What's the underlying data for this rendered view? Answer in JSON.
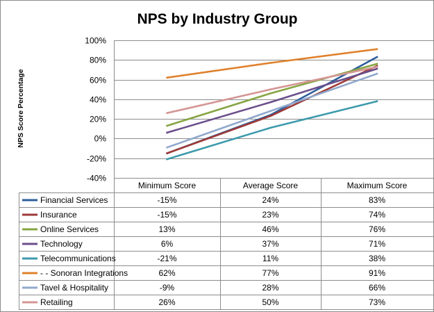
{
  "chart_data": {
    "type": "line",
    "title": "NPS  by Industry Group",
    "ylabel": "NPS Score Percentage",
    "xlabel": "",
    "categories": [
      "Minimum Score",
      "Average Score",
      "Maximum Score"
    ],
    "ylim": [
      -40,
      100
    ],
    "y_ticks": [
      -40,
      -20,
      0,
      20,
      40,
      60,
      80,
      100
    ],
    "y_tick_labels": [
      "-40%",
      "-20%",
      "0%",
      "20%",
      "40%",
      "60%",
      "80%",
      "100%"
    ],
    "grid": "horizontal",
    "legend": "data-table",
    "series": [
      {
        "name": "Financial Services",
        "values": [
          -15,
          24,
          83
        ],
        "labels": [
          "-15%",
          "24%",
          "83%"
        ],
        "color": "#2e5f9a"
      },
      {
        "name": "Insurance",
        "values": [
          -15,
          23,
          74
        ],
        "labels": [
          "-15%",
          "23%",
          "74%"
        ],
        "color": "#9e3a38"
      },
      {
        "name": "Online Services",
        "values": [
          13,
          46,
          76
        ],
        "labels": [
          "13%",
          "46%",
          "76%"
        ],
        "color": "#86a542"
      },
      {
        "name": "Technology",
        "values": [
          6,
          37,
          71
        ],
        "labels": [
          "6%",
          "37%",
          "71%"
        ],
        "color": "#6b4f8c"
      },
      {
        "name": "Telecommunications",
        "values": [
          -21,
          11,
          38
        ],
        "labels": [
          "-21%",
          "11%",
          "38%"
        ],
        "color": "#3c9aac"
      },
      {
        "name": "- - Sonoran Integrations",
        "values": [
          62,
          77,
          91
        ],
        "labels": [
          "62%",
          "77%",
          "91%"
        ],
        "color": "#e0812c"
      },
      {
        "name": "Tavel & Hospitality",
        "values": [
          -9,
          28,
          66
        ],
        "labels": [
          "-9%",
          "28%",
          "66%"
        ],
        "color": "#91a8cd"
      },
      {
        "name": "Retailing",
        "values": [
          26,
          50,
          73
        ],
        "labels": [
          "26%",
          "50%",
          "73%"
        ],
        "color": "#d49695"
      }
    ]
  }
}
